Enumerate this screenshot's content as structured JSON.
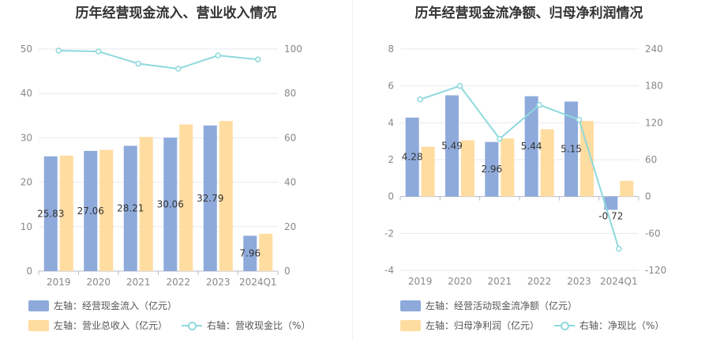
{
  "chart_data": [
    {
      "type": "bar",
      "title": "历年经营现金流入、营业收入情况",
      "categories": [
        "2019",
        "2020",
        "2021",
        "2022",
        "2023",
        "2024Q1"
      ],
      "series": [
        {
          "name": "左轴：经营现金流入（亿元）",
          "axis": "left",
          "kind": "bar",
          "color": "#8eaadb",
          "values": [
            25.83,
            27.06,
            28.21,
            30.06,
            32.79,
            7.96
          ],
          "labels": [
            "25.83",
            "27.06",
            "28.21",
            "30.06",
            "32.79",
            "7.96"
          ]
        },
        {
          "name": "左轴：营业总收入（亿元）",
          "axis": "left",
          "kind": "bar",
          "color": "#ffdca0",
          "values": [
            26.0,
            27.3,
            30.2,
            33.0,
            33.8,
            8.4
          ]
        },
        {
          "name": "右轴：营收现金比（%）",
          "axis": "right",
          "kind": "line",
          "color": "#8ed9dd",
          "values": [
            99.3,
            98.9,
            93.4,
            91.1,
            97.1,
            95.3
          ]
        }
      ],
      "y_left": {
        "min": 0,
        "max": 50,
        "ticks": [
          0,
          10,
          20,
          30,
          40,
          50
        ]
      },
      "y_right": {
        "min": 0,
        "max": 100,
        "ticks": [
          0,
          20,
          40,
          60,
          80,
          100
        ]
      },
      "grid": true,
      "legend_position": "bottom-left"
    },
    {
      "type": "bar",
      "title": "历年经营现金流净额、归母净利润情况",
      "categories": [
        "2019",
        "2020",
        "2021",
        "2022",
        "2023",
        "2024Q1"
      ],
      "series": [
        {
          "name": "左轴：经营活动现金流净额（亿元）",
          "axis": "left",
          "kind": "bar",
          "color": "#8eaadb",
          "values": [
            4.28,
            5.49,
            2.96,
            5.44,
            5.15,
            -0.72
          ],
          "labels": [
            "4.28",
            "5.49",
            "2.96",
            "5.44",
            "5.15",
            "-0.72"
          ]
        },
        {
          "name": "左轴：归母净利润（亿元）",
          "axis": "left",
          "kind": "bar",
          "color": "#ffdca0",
          "values": [
            2.7,
            3.05,
            3.15,
            3.65,
            4.1,
            0.85
          ]
        },
        {
          "name": "右轴：净现比（%）",
          "axis": "right",
          "kind": "line",
          "color": "#8ed9dd",
          "values": [
            158,
            180,
            94,
            149,
            125,
            -85
          ]
        }
      ],
      "y_left": {
        "min": -4,
        "max": 8,
        "ticks": [
          -4,
          -2,
          0,
          2,
          4,
          6,
          8
        ]
      },
      "y_right": {
        "min": -120,
        "max": 240,
        "ticks": [
          -120,
          -60,
          0,
          60,
          120,
          180,
          240
        ]
      },
      "grid": true,
      "legend_position": "bottom-left"
    }
  ]
}
